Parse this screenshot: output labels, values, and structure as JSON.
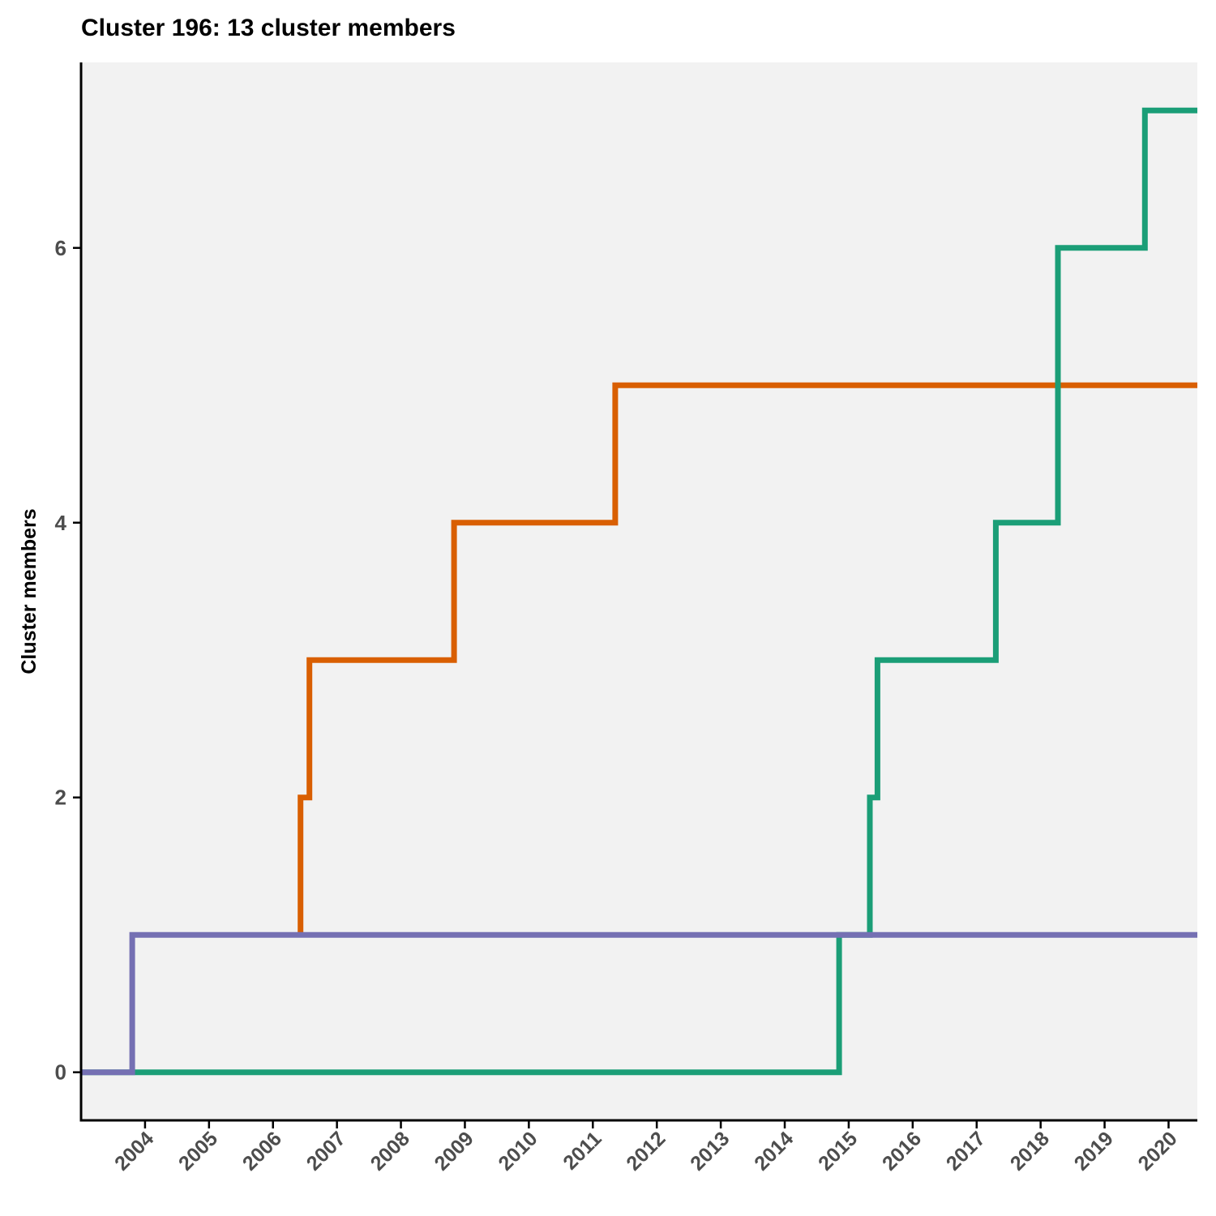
{
  "chart_data": {
    "type": "line",
    "step": true,
    "title": "Cluster 196: 13 cluster members",
    "xlabel": "",
    "ylabel": "Cluster members",
    "xlim": [
      2003.0,
      2020.45
    ],
    "ylim": [
      -0.35,
      7.35
    ],
    "x_ticks": [
      2004,
      2005,
      2006,
      2007,
      2008,
      2009,
      2010,
      2011,
      2012,
      2013,
      2014,
      2015,
      2016,
      2017,
      2018,
      2019,
      2020
    ],
    "y_ticks": [
      0,
      2,
      4,
      6
    ],
    "grid": false,
    "legend": "none",
    "background_color": "#f2f2f2",
    "series": [
      {
        "color": "#d95f02",
        "points": [
          [
            2006.43,
            1
          ],
          [
            2006.43,
            2
          ],
          [
            2006.57,
            2
          ],
          [
            2006.57,
            3
          ],
          [
            2008.83,
            3
          ],
          [
            2008.83,
            4
          ],
          [
            2011.35,
            4
          ],
          [
            2011.35,
            5
          ],
          [
            2020.45,
            5
          ]
        ]
      },
      {
        "color": "#1b9e77",
        "points": [
          [
            2003.0,
            0
          ],
          [
            2014.85,
            0
          ],
          [
            2014.85,
            1
          ],
          [
            2015.33,
            1
          ],
          [
            2015.33,
            2
          ],
          [
            2015.45,
            2
          ],
          [
            2015.45,
            3
          ],
          [
            2017.3,
            3
          ],
          [
            2017.3,
            4
          ],
          [
            2018.27,
            4
          ],
          [
            2018.27,
            6
          ],
          [
            2019.63,
            6
          ],
          [
            2019.63,
            7
          ],
          [
            2020.45,
            7
          ]
        ]
      },
      {
        "color": "#7570b3",
        "points": [
          [
            2003.0,
            0
          ],
          [
            2003.8,
            0
          ],
          [
            2003.8,
            1
          ],
          [
            2020.45,
            1
          ]
        ]
      }
    ]
  }
}
